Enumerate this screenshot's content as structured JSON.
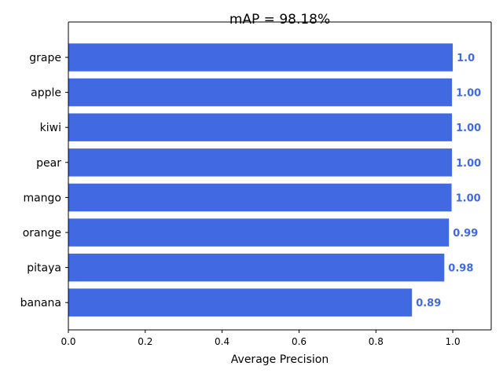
{
  "chart_data": {
    "type": "bar",
    "orientation": "horizontal",
    "title": "mAP = 98.18%",
    "xlabel": "Average Precision",
    "ylabel": "",
    "categories": [
      "grape",
      "apple",
      "kiwi",
      "pear",
      "mango",
      "orange",
      "pitaya",
      "banana"
    ],
    "values": [
      1.0,
      0.998,
      0.998,
      0.998,
      0.997,
      0.99,
      0.978,
      0.894
    ],
    "value_labels": [
      "1.0",
      "1.00",
      "1.00",
      "1.00",
      "1.00",
      "0.99",
      "0.98",
      "0.89"
    ],
    "xlim": [
      0,
      1.1
    ],
    "xticks": [
      0.0,
      0.2,
      0.4,
      0.6,
      0.8,
      1.0
    ],
    "xtick_labels": [
      "0.0",
      "0.2",
      "0.4",
      "0.6",
      "0.8",
      "1.0"
    ],
    "grid": false,
    "bar_color": "#4169E1",
    "label_color": "#4169E1"
  }
}
